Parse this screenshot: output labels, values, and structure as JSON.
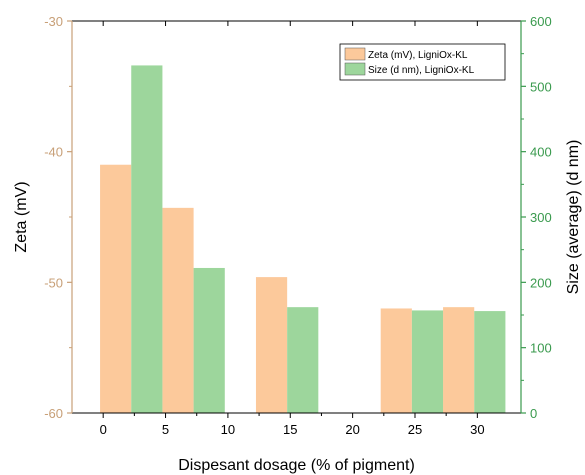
{
  "chart_data": {
    "type": "bar",
    "xlabel": "Dispesant dosage (% of pigment)",
    "x_ticks": [
      0,
      5,
      10,
      15,
      20,
      25,
      30
    ],
    "xlim": [
      -2.5,
      33.5
    ],
    "y_left": {
      "label": "Zeta (mV)",
      "ticks": [
        -60,
        -50,
        -40,
        -30
      ],
      "range": [
        -60,
        -30
      ],
      "minor_step": 5,
      "color": "#c8a078"
    },
    "y_right": {
      "label": "Size (average) (d nm)",
      "ticks": [
        0,
        100,
        200,
        300,
        400,
        500,
        600
      ],
      "range": [
        0,
        600
      ],
      "minor_step": 50,
      "color": "#3a9a4e"
    },
    "series": [
      {
        "name": "Zeta (mV), LigniOx-KL",
        "axis": "left",
        "color": "#fcc99b",
        "x": [
          1,
          6,
          13.5,
          23.5,
          28.5
        ],
        "values": [
          -41.0,
          -44.3,
          -49.6,
          -52.0,
          -51.9
        ]
      },
      {
        "name": "Size (d nm), LigniOx-KL",
        "axis": "right",
        "color": "#9dd69c",
        "x": [
          3.5,
          8.5,
          16,
          26,
          31
        ],
        "values": [
          532,
          222,
          162,
          157,
          156
        ]
      }
    ],
    "bar_width": 2.5,
    "legend_position": "top-right"
  }
}
